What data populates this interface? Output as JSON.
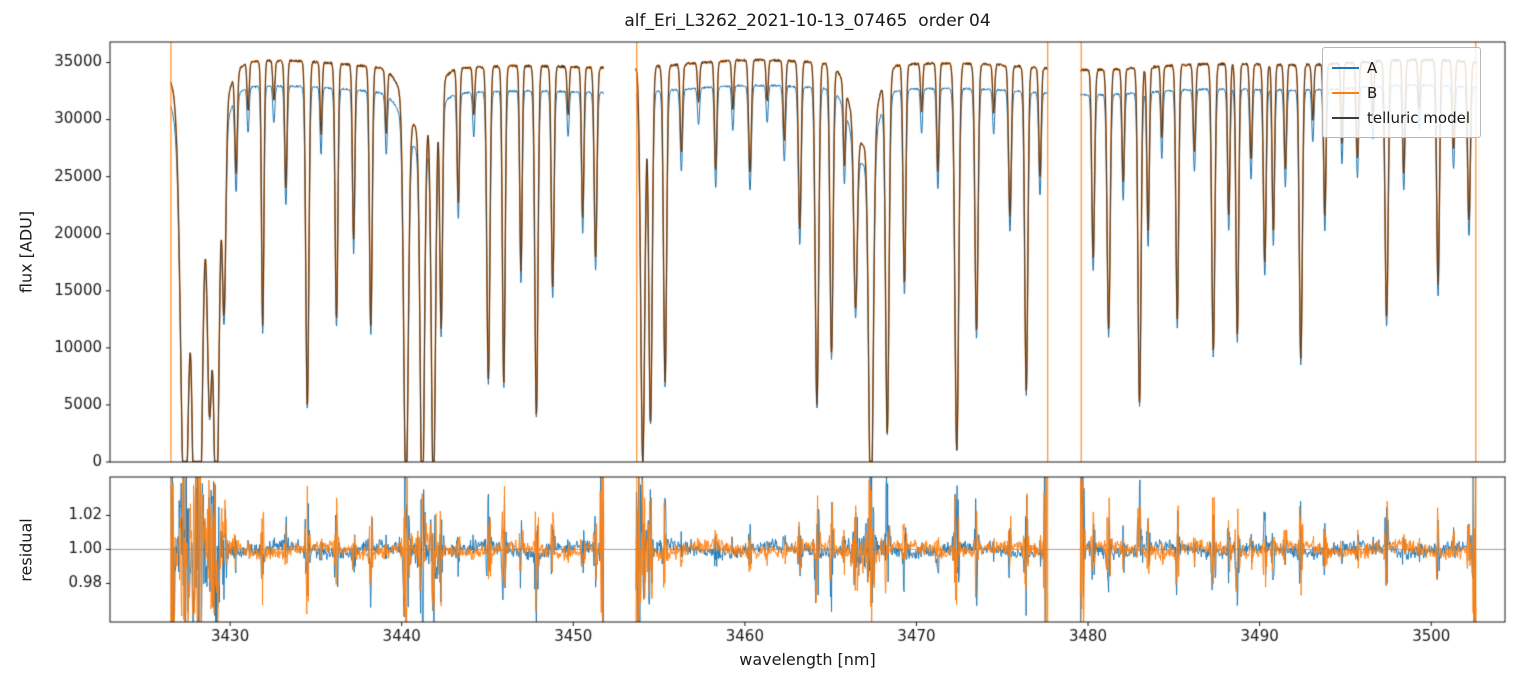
{
  "chart_data": {
    "type": "line",
    "title": "alf_Eri_L3262_2021-10-13_07465  order 04",
    "xlabel": "wavelength [nm]",
    "xlim": [
      3423.0,
      3504.3
    ],
    "xticks": [
      3430,
      3440,
      3450,
      3460,
      3470,
      3480,
      3490,
      3500
    ],
    "top_panel": {
      "ylabel": "flux [ADU]",
      "ylim": [
        0,
        36800
      ],
      "yticks": [
        0,
        5000,
        10000,
        15000,
        20000,
        25000,
        30000,
        35000
      ]
    },
    "bottom_panel": {
      "ylabel": "residual",
      "ylim": [
        0.9573,
        1.0426
      ],
      "yticks": [
        0.98,
        1.0,
        1.02
      ],
      "hline": 1.0
    },
    "legend": {
      "position": "upper right",
      "entries": [
        {
          "label": "A",
          "color": "#1f77b4"
        },
        {
          "label": "B",
          "color": "#ff7f0e"
        },
        {
          "label": "telluric model",
          "color": "#3b3b3b"
        }
      ]
    },
    "series_continuum": {
      "A": 32600,
      "B": 34800,
      "telluric_model": 34800
    },
    "segments": [
      [
        3426.55,
        3451.8
      ],
      [
        3453.65,
        3477.65
      ],
      [
        3479.55,
        3502.65
      ]
    ],
    "edge_spikes": [
      {
        "x": 3426.55,
        "color": "#ff7f0e"
      },
      {
        "x": 3453.7,
        "color": "#ff7f0e"
      },
      {
        "x": 3477.65,
        "color": "#ff7f0e"
      },
      {
        "x": 3479.6,
        "color": "#ff7f0e"
      },
      {
        "x": 3502.6,
        "color": "#ff7f0e"
      }
    ],
    "absorption_lines": [
      [
        3427.35,
        1.0,
        0.22
      ],
      [
        3427.9,
        0.7,
        0.12
      ],
      [
        3428.2,
        0.95,
        0.16
      ],
      [
        3428.35,
        0.35,
        0.9
      ],
      [
        3428.8,
        0.55,
        0.12
      ],
      [
        3429.2,
        0.95,
        0.15
      ],
      [
        3429.65,
        0.5,
        0.1
      ],
      [
        3430.35,
        0.25,
        0.07
      ],
      [
        3431.05,
        0.12,
        0.06
      ],
      [
        3431.9,
        0.66,
        0.07
      ],
      [
        3432.55,
        0.1,
        0.06
      ],
      [
        3433.25,
        0.32,
        0.07
      ],
      [
        3434.5,
        0.86,
        0.09
      ],
      [
        3435.3,
        0.18,
        0.06
      ],
      [
        3436.2,
        0.64,
        0.08
      ],
      [
        3437.2,
        0.44,
        0.07
      ],
      [
        3438.2,
        0.66,
        0.08
      ],
      [
        3439.1,
        0.16,
        0.06
      ],
      [
        3440.25,
        1.0,
        0.13
      ],
      [
        3441.0,
        0.15,
        0.8
      ],
      [
        3441.2,
        1.0,
        0.12
      ],
      [
        3441.85,
        1.0,
        0.12
      ],
      [
        3442.3,
        0.62,
        0.08
      ],
      [
        3443.3,
        0.34,
        0.07
      ],
      [
        3444.2,
        0.12,
        0.06
      ],
      [
        3445.05,
        0.79,
        0.09
      ],
      [
        3445.95,
        0.8,
        0.08
      ],
      [
        3446.95,
        0.52,
        0.07
      ],
      [
        3447.85,
        0.88,
        0.09
      ],
      [
        3448.8,
        0.56,
        0.08
      ],
      [
        3449.7,
        0.12,
        0.06
      ],
      [
        3450.55,
        0.38,
        0.07
      ],
      [
        3451.3,
        0.48,
        0.08
      ],
      [
        3454.05,
        1.0,
        0.12
      ],
      [
        3454.5,
        0.9,
        0.1
      ],
      [
        3455.35,
        0.8,
        0.09
      ],
      [
        3456.3,
        0.22,
        0.07
      ],
      [
        3457.3,
        0.1,
        0.06
      ],
      [
        3458.3,
        0.27,
        0.07
      ],
      [
        3459.3,
        0.12,
        0.06
      ],
      [
        3460.3,
        0.28,
        0.08
      ],
      [
        3461.3,
        0.1,
        0.06
      ],
      [
        3462.3,
        0.2,
        0.07
      ],
      [
        3463.2,
        0.42,
        0.08
      ],
      [
        3464.2,
        0.86,
        0.1
      ],
      [
        3465.05,
        0.72,
        0.09
      ],
      [
        3465.8,
        0.2,
        0.06
      ],
      [
        3466.45,
        0.45,
        0.1
      ],
      [
        3466.9,
        0.2,
        0.7
      ],
      [
        3467.35,
        1.0,
        0.13
      ],
      [
        3468.3,
        0.9,
        0.1
      ],
      [
        3469.3,
        0.55,
        0.08
      ],
      [
        3470.3,
        0.12,
        0.06
      ],
      [
        3471.25,
        0.27,
        0.07
      ],
      [
        3472.35,
        0.97,
        0.11
      ],
      [
        3473.5,
        0.67,
        0.09
      ],
      [
        3474.5,
        0.12,
        0.06
      ],
      [
        3475.45,
        0.38,
        0.08
      ],
      [
        3476.4,
        0.82,
        0.09
      ],
      [
        3477.2,
        0.28,
        0.07
      ],
      [
        3480.3,
        0.48,
        0.08
      ],
      [
        3481.2,
        0.66,
        0.09
      ],
      [
        3482.05,
        0.29,
        0.07
      ],
      [
        3483.0,
        0.85,
        0.09
      ],
      [
        3483.5,
        0.42,
        0.07
      ],
      [
        3484.3,
        0.18,
        0.06
      ],
      [
        3485.2,
        0.64,
        0.08
      ],
      [
        3486.2,
        0.22,
        0.07
      ],
      [
        3487.3,
        0.72,
        0.09
      ],
      [
        3488.2,
        0.38,
        0.07
      ],
      [
        3488.7,
        0.68,
        0.08
      ],
      [
        3489.5,
        0.24,
        0.07
      ],
      [
        3490.3,
        0.5,
        0.08
      ],
      [
        3490.8,
        0.42,
        0.07
      ],
      [
        3491.5,
        0.26,
        0.07
      ],
      [
        3492.4,
        0.74,
        0.09
      ],
      [
        3493.1,
        0.14,
        0.06
      ],
      [
        3493.8,
        0.38,
        0.07
      ],
      [
        3494.8,
        0.2,
        0.06
      ],
      [
        3495.7,
        0.24,
        0.07
      ],
      [
        3496.6,
        0.14,
        0.06
      ],
      [
        3497.4,
        0.64,
        0.09
      ],
      [
        3498.4,
        0.28,
        0.07
      ],
      [
        3499.3,
        0.12,
        0.06
      ],
      [
        3500.4,
        0.56,
        0.08
      ],
      [
        3501.3,
        0.22,
        0.07
      ],
      [
        3502.2,
        0.4,
        0.08
      ]
    ],
    "noise": {
      "flux_rel": 0.003,
      "residual_base": 0.005,
      "residual_line_amp": 0.05,
      "seed_A": 3,
      "seed_B": 7
    }
  }
}
